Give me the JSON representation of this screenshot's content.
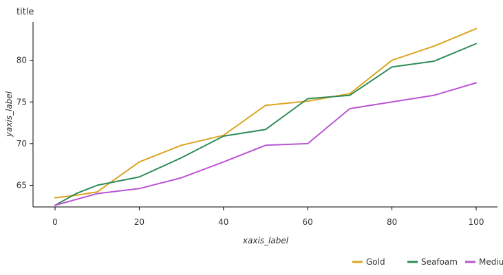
{
  "chart_data": {
    "type": "line",
    "title": "title",
    "xlabel": "xaxis_label",
    "ylabel": "yaxis_label",
    "xlim": [
      0,
      100
    ],
    "ylim": [
      62.4,
      84.6
    ],
    "x_ticks": [
      0,
      20,
      40,
      60,
      80,
      100
    ],
    "y_ticks": [
      65,
      70,
      75,
      80
    ],
    "grid": false,
    "legend_position": "bottom-right",
    "series": [
      {
        "name": "Gold",
        "color": "#DAA520",
        "x": [
          0,
          5,
          10,
          20,
          30,
          40,
          50,
          60,
          70,
          80,
          90,
          100
        ],
        "y": [
          63.5,
          63.8,
          64.2,
          67.8,
          69.8,
          71.0,
          74.6,
          75.1,
          76.0,
          80.0,
          81.7,
          83.8
        ]
      },
      {
        "name": "Seafoam",
        "color": "#2E8B57",
        "x": [
          0,
          5,
          10,
          20,
          30,
          40,
          50,
          60,
          70,
          80,
          90,
          100
        ],
        "y": [
          62.6,
          64.0,
          65.0,
          66.0,
          68.3,
          70.9,
          71.7,
          75.4,
          75.8,
          79.2,
          79.9,
          82.0
        ]
      },
      {
        "name": "Medium Orchid",
        "color": "#BA55D3",
        "x": [
          0,
          10,
          20,
          30,
          40,
          50,
          60,
          70,
          80,
          90,
          100
        ],
        "y": [
          62.6,
          64.0,
          64.6,
          65.9,
          67.8,
          69.8,
          70.0,
          74.2,
          75.0,
          75.8,
          77.3
        ]
      }
    ]
  }
}
